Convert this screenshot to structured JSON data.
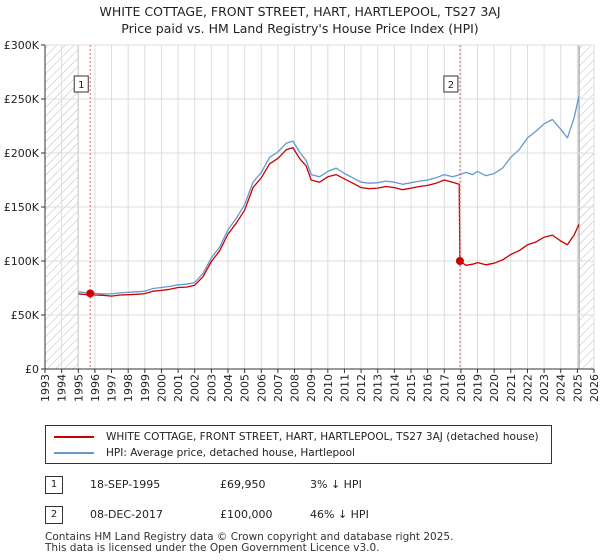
{
  "title_line1": "WHITE COTTAGE, FRONT STREET, HART, HARTLEPOOL, TS27 3AJ",
  "title_line2": "Price paid vs. HM Land Registry's House Price Index (HPI)",
  "chart_data": {
    "type": "line",
    "xlim": [
      1993,
      2026
    ],
    "ylim": [
      0,
      300000
    ],
    "y_ticks": [
      {
        "value": 0,
        "label": "£0"
      },
      {
        "value": 50000,
        "label": "£50K"
      },
      {
        "value": 100000,
        "label": "£100K"
      },
      {
        "value": 150000,
        "label": "£150K"
      },
      {
        "value": 200000,
        "label": "£200K"
      },
      {
        "value": 250000,
        "label": "£250K"
      },
      {
        "value": 300000,
        "label": "£300K"
      }
    ],
    "x_ticks": [
      "1993",
      "1994",
      "1995",
      "1996",
      "1997",
      "1998",
      "1999",
      "2000",
      "2001",
      "2002",
      "2003",
      "2004",
      "2005",
      "2006",
      "2007",
      "2008",
      "2009",
      "2010",
      "2011",
      "2012",
      "2013",
      "2014",
      "2015",
      "2016",
      "2017",
      "2018",
      "2019",
      "2020",
      "2021",
      "2022",
      "2023",
      "2024",
      "2025",
      "2026"
    ],
    "hatched_ranges": [
      [
        1993,
        1995.0
      ],
      [
        2025.1,
        2026
      ]
    ],
    "grid": true,
    "series": [
      {
        "name": "WHITE COTTAGE, FRONT STREET, HART, HARTLEPOOL, TS27 3AJ (detached house)",
        "color": "#cc0000",
        "points": [
          [
            1995.0,
            69500
          ],
          [
            1995.5,
            68800
          ],
          [
            1995.72,
            69950
          ],
          [
            1996.0,
            68500
          ],
          [
            1996.5,
            68200
          ],
          [
            1997.0,
            67500
          ],
          [
            1997.5,
            68500
          ],
          [
            1998.0,
            68800
          ],
          [
            1998.5,
            69200
          ],
          [
            1999.0,
            69800
          ],
          [
            1999.5,
            72000
          ],
          [
            2000.0,
            72800
          ],
          [
            2000.5,
            73800
          ],
          [
            2001.0,
            75500
          ],
          [
            2001.5,
            75800
          ],
          [
            2002.0,
            77500
          ],
          [
            2002.5,
            85500
          ],
          [
            2003.0,
            99500
          ],
          [
            2003.5,
            109500
          ],
          [
            2004.0,
            125000
          ],
          [
            2004.5,
            135000
          ],
          [
            2005.0,
            147000
          ],
          [
            2005.5,
            168000
          ],
          [
            2006.0,
            177000
          ],
          [
            2006.5,
            190000
          ],
          [
            2007.0,
            195000
          ],
          [
            2007.5,
            203000
          ],
          [
            2007.9,
            205000
          ],
          [
            2008.3,
            195000
          ],
          [
            2008.7,
            188000
          ],
          [
            2009.0,
            175000
          ],
          [
            2009.5,
            173000
          ],
          [
            2010.0,
            178000
          ],
          [
            2010.5,
            180000
          ],
          [
            2011.0,
            176000
          ],
          [
            2011.5,
            172000
          ],
          [
            2012.0,
            168000
          ],
          [
            2012.5,
            167000
          ],
          [
            2013.0,
            167500
          ],
          [
            2013.5,
            169000
          ],
          [
            2014.0,
            168000
          ],
          [
            2014.5,
            166000
          ],
          [
            2015.0,
            167500
          ],
          [
            2015.5,
            169000
          ],
          [
            2016.0,
            170000
          ],
          [
            2016.5,
            172000
          ],
          [
            2017.0,
            175000
          ],
          [
            2017.5,
            173000
          ],
          [
            2017.9,
            171000
          ],
          [
            2017.94,
            100000
          ],
          [
            2018.3,
            96000
          ],
          [
            2018.7,
            97000
          ],
          [
            2019.0,
            98500
          ],
          [
            2019.5,
            96500
          ],
          [
            2020.0,
            98000
          ],
          [
            2020.5,
            101000
          ],
          [
            2021.0,
            106000
          ],
          [
            2021.5,
            109500
          ],
          [
            2022.0,
            115000
          ],
          [
            2022.5,
            117500
          ],
          [
            2023.0,
            122000
          ],
          [
            2023.5,
            124000
          ],
          [
            2024.0,
            118500
          ],
          [
            2024.4,
            115000
          ],
          [
            2024.8,
            124000
          ],
          [
            2025.1,
            134000
          ]
        ]
      },
      {
        "name": "HPI: Average price, detached house, Hartlepool",
        "color": "#6699cc",
        "points": [
          [
            1995.0,
            71500
          ],
          [
            1995.5,
            70500
          ],
          [
            1996.0,
            70000
          ],
          [
            1996.5,
            69500
          ],
          [
            1997.0,
            69500
          ],
          [
            1997.5,
            70500
          ],
          [
            1998.0,
            71000
          ],
          [
            1998.5,
            71500
          ],
          [
            1999.0,
            72000
          ],
          [
            1999.5,
            74500
          ],
          [
            2000.0,
            75500
          ],
          [
            2000.5,
            76500
          ],
          [
            2001.0,
            78000
          ],
          [
            2001.5,
            78500
          ],
          [
            2002.0,
            80000
          ],
          [
            2002.5,
            88500
          ],
          [
            2003.0,
            103000
          ],
          [
            2003.5,
            113000
          ],
          [
            2004.0,
            129000
          ],
          [
            2004.5,
            139500
          ],
          [
            2005.0,
            152000
          ],
          [
            2005.5,
            173000
          ],
          [
            2006.0,
            182000
          ],
          [
            2006.5,
            196000
          ],
          [
            2007.0,
            201000
          ],
          [
            2007.5,
            209000
          ],
          [
            2007.9,
            211000
          ],
          [
            2008.3,
            201000
          ],
          [
            2008.7,
            193000
          ],
          [
            2009.0,
            180000
          ],
          [
            2009.5,
            178000
          ],
          [
            2010.0,
            183000
          ],
          [
            2010.5,
            186000
          ],
          [
            2011.0,
            181000
          ],
          [
            2011.5,
            177000
          ],
          [
            2012.0,
            173000
          ],
          [
            2012.5,
            172000
          ],
          [
            2013.0,
            172500
          ],
          [
            2013.5,
            174000
          ],
          [
            2014.0,
            173000
          ],
          [
            2014.5,
            171000
          ],
          [
            2015.0,
            172500
          ],
          [
            2015.5,
            174000
          ],
          [
            2016.0,
            175000
          ],
          [
            2016.5,
            177000
          ],
          [
            2017.0,
            180000
          ],
          [
            2017.5,
            178000
          ],
          [
            2017.94,
            180000
          ],
          [
            2018.3,
            182000
          ],
          [
            2018.7,
            180000
          ],
          [
            2019.0,
            183000
          ],
          [
            2019.5,
            179000
          ],
          [
            2020.0,
            181000
          ],
          [
            2020.5,
            186000
          ],
          [
            2021.0,
            196000
          ],
          [
            2021.5,
            203000
          ],
          [
            2022.0,
            214000
          ],
          [
            2022.5,
            220000
          ],
          [
            2023.0,
            227000
          ],
          [
            2023.5,
            231000
          ],
          [
            2024.0,
            222000
          ],
          [
            2024.4,
            214000
          ],
          [
            2024.8,
            232000
          ],
          [
            2025.1,
            253000
          ]
        ]
      }
    ],
    "sales": [
      {
        "id": "1",
        "x": 1995.72,
        "y": 69950
      },
      {
        "id": "2",
        "x": 2017.94,
        "y": 100000
      }
    ]
  },
  "legend": {
    "items": [
      {
        "label": "WHITE COTTAGE, FRONT STREET, HART, HARTLEPOOL, TS27 3AJ (detached house)",
        "color": "#cc0000"
      },
      {
        "label": "HPI: Average price, detached house, Hartlepool",
        "color": "#6699cc"
      }
    ]
  },
  "sales_table": [
    {
      "id": "1",
      "date": "18-SEP-1995",
      "price": "£69,950",
      "hpi": "3% ↓ HPI"
    },
    {
      "id": "2",
      "date": "08-DEC-2017",
      "price": "£100,000",
      "hpi": "46% ↓ HPI"
    }
  ],
  "footer": {
    "line1": "Contains HM Land Registry data © Crown copyright and database right 2025.",
    "line2": "This data is licensed under the Open Government Licence v3.0."
  }
}
